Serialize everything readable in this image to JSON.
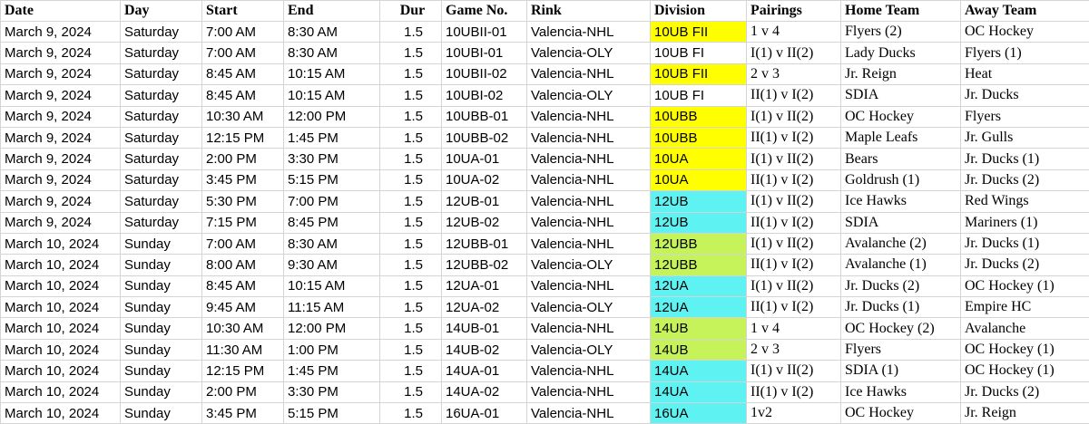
{
  "table": {
    "header": [
      "Date",
      "Day",
      "Start",
      "End",
      "Dur",
      "Game No.",
      "Rink",
      "Division",
      "Pairings",
      "Home Team",
      "Away Team"
    ],
    "rows": [
      [
        "March 9, 2024",
        "Saturday",
        "7:00 AM",
        "8:30 AM",
        "1.5",
        "10UBII-01",
        "Valencia-NHL",
        "10UB FII",
        "1 v 4",
        "Flyers (2)",
        "OC Hockey"
      ],
      [
        "March 9, 2024",
        "Saturday",
        "7:00 AM",
        "8:30 AM",
        "1.5",
        "10UBI-01",
        "Valencia-OLY",
        "10UB FI",
        "I(1) v II(2)",
        "Lady Ducks",
        "Flyers (1)"
      ],
      [
        "March 9, 2024",
        "Saturday",
        "8:45 AM",
        "10:15 AM",
        "1.5",
        "10UBII-02",
        "Valencia-NHL",
        "10UB FII",
        "2 v 3",
        "Jr. Reign",
        "Heat"
      ],
      [
        "March 9, 2024",
        "Saturday",
        "8:45 AM",
        "10:15 AM",
        "1.5",
        "10UBI-02",
        "Valencia-OLY",
        "10UB FI",
        "II(1) v I(2)",
        "SDIA",
        "Jr. Ducks"
      ],
      [
        "March 9, 2024",
        "Saturday",
        "10:30 AM",
        "12:00 PM",
        "1.5",
        "10UBB-01",
        "Valencia-NHL",
        "10UBB",
        "I(1) v II(2)",
        "OC Hockey",
        "Flyers"
      ],
      [
        "March 9, 2024",
        "Saturday",
        "12:15 PM",
        "1:45 PM",
        "1.5",
        "10UBB-02",
        "Valencia-NHL",
        "10UBB",
        "II(1) v I(2)",
        "Maple Leafs",
        "Jr. Gulls"
      ],
      [
        "March 9, 2024",
        "Saturday",
        "2:00 PM",
        "3:30 PM",
        "1.5",
        "10UA-01",
        "Valencia-NHL",
        "10UA",
        "I(1) v II(2)",
        "Bears",
        "Jr. Ducks (1)"
      ],
      [
        "March 9, 2024",
        "Saturday",
        "3:45 PM",
        "5:15 PM",
        "1.5",
        "10UA-02",
        "Valencia-NHL",
        "10UA",
        "II(1) v I(2)",
        "Goldrush (1)",
        "Jr. Ducks (2)"
      ],
      [
        "March 9, 2024",
        "Saturday",
        "5:30 PM",
        "7:00 PM",
        "1.5",
        "12UB-01",
        "Valencia-NHL",
        "12UB",
        "I(1) v II(2)",
        "Ice Hawks",
        "Red Wings"
      ],
      [
        "March 9, 2024",
        "Saturday",
        "7:15 PM",
        "8:45 PM",
        "1.5",
        "12UB-02",
        "Valencia-NHL",
        "12UB",
        "II(1) v I(2)",
        "SDIA",
        "Mariners (1)"
      ],
      [
        "March 10, 2024",
        "Sunday",
        "7:00 AM",
        "8:30 AM",
        "1.5",
        "12UBB-01",
        "Valencia-NHL",
        "12UBB",
        "I(1) v II(2)",
        "Avalanche (2)",
        "Jr. Ducks (1)"
      ],
      [
        "March 10, 2024",
        "Sunday",
        "8:00 AM",
        "9:30 AM",
        "1.5",
        "12UBB-02",
        "Valencia-OLY",
        "12UBB",
        "II(1) v I(2)",
        "Avalanche (1)",
        "Jr. Ducks (2)"
      ],
      [
        "March 10, 2024",
        "Sunday",
        "8:45 AM",
        "10:15 AM",
        "1.5",
        "12UA-01",
        "Valencia-NHL",
        "12UA",
        "I(1) v II(2)",
        "Jr. Ducks (2)",
        "OC Hockey (1)"
      ],
      [
        "March 10, 2024",
        "Sunday",
        "9:45 AM",
        "11:15 AM",
        "1.5",
        "12UA-02",
        "Valencia-OLY",
        "12UA",
        "II(1) v I(2)",
        "Jr. Ducks (1)",
        "Empire HC"
      ],
      [
        "March 10, 2024",
        "Sunday",
        "10:30 AM",
        "12:00 PM",
        "1.5",
        "14UB-01",
        "Valencia-NHL",
        "14UB",
        "1 v 4",
        "OC Hockey (2)",
        "Avalanche"
      ],
      [
        "March 10, 2024",
        "Sunday",
        "11:30 AM",
        "1:00 PM",
        "1.5",
        "14UB-02",
        "Valencia-OLY",
        "14UB",
        "2 v 3",
        "Flyers",
        "OC Hockey (1)"
      ],
      [
        "March 10, 2024",
        "Sunday",
        "12:15 PM",
        "1:45 PM",
        "1.5",
        "14UA-01",
        "Valencia-NHL",
        "14UA",
        "I(1) v II(2)",
        "SDIA (1)",
        "OC Hockey (1)"
      ],
      [
        "March 10, 2024",
        "Sunday",
        "2:00 PM",
        "3:30 PM",
        "1.5",
        "14UA-02",
        "Valencia-NHL",
        "14UA",
        "II(1) v I(2)",
        "Ice Hawks",
        "Jr. Ducks (2)"
      ],
      [
        "March 10, 2024",
        "Sunday",
        "3:45 PM",
        "5:15 PM",
        "1.5",
        "16UA-01",
        "Valencia-NHL",
        "16UA",
        "1v2",
        "OC Hockey",
        "Jr. Reign"
      ]
    ],
    "division_colors": [
      "#ffff00",
      "#ffffff",
      "#ffff00",
      "#ffffff",
      "#ffff00",
      "#ffff00",
      "#ffff00",
      "#ffff00",
      "#5ff2f2",
      "#5ff2f2",
      "#c6f25a",
      "#c6f25a",
      "#5ff2f2",
      "#5ff2f2",
      "#c6f25a",
      "#c6f25a",
      "#5ff2f2",
      "#5ff2f2",
      "#5ff2f2"
    ]
  }
}
